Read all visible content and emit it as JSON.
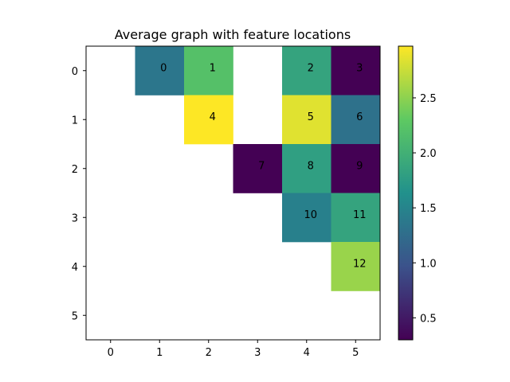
{
  "chart_data": {
    "type": "heatmap",
    "title": "Average graph with feature locations",
    "xlabel": "",
    "ylabel": "",
    "x_ticks": [
      "0",
      "1",
      "2",
      "3",
      "4",
      "5"
    ],
    "y_ticks": [
      "0",
      "1",
      "2",
      "3",
      "4",
      "5"
    ],
    "colormap": "viridis",
    "colorbar": {
      "vmin": 0.3,
      "vmax": 2.97,
      "ticks": [
        0.5,
        1.0,
        1.5,
        2.0,
        2.5
      ],
      "tick_labels": [
        "0.5",
        "1.0",
        "1.5",
        "2.0",
        "2.5"
      ]
    },
    "cells": [
      {
        "row": 0,
        "col": 1,
        "value": 1.35,
        "label": "0"
      },
      {
        "row": 0,
        "col": 2,
        "value": 2.2,
        "label": "1"
      },
      {
        "row": 0,
        "col": 4,
        "value": 1.85,
        "label": "2"
      },
      {
        "row": 0,
        "col": 5,
        "value": 0.3,
        "label": "3"
      },
      {
        "row": 1,
        "col": 2,
        "value": 2.97,
        "label": "4"
      },
      {
        "row": 1,
        "col": 4,
        "value": 2.85,
        "label": "5"
      },
      {
        "row": 1,
        "col": 5,
        "value": 1.3,
        "label": "6"
      },
      {
        "row": 2,
        "col": 3,
        "value": 0.3,
        "label": "7"
      },
      {
        "row": 2,
        "col": 4,
        "value": 1.8,
        "label": "8"
      },
      {
        "row": 2,
        "col": 5,
        "value": 0.3,
        "label": "9"
      },
      {
        "row": 3,
        "col": 4,
        "value": 1.45,
        "label": "10"
      },
      {
        "row": 3,
        "col": 5,
        "value": 1.85,
        "label": "11"
      },
      {
        "row": 4,
        "col": 5,
        "value": 2.55,
        "label": "12"
      }
    ]
  }
}
